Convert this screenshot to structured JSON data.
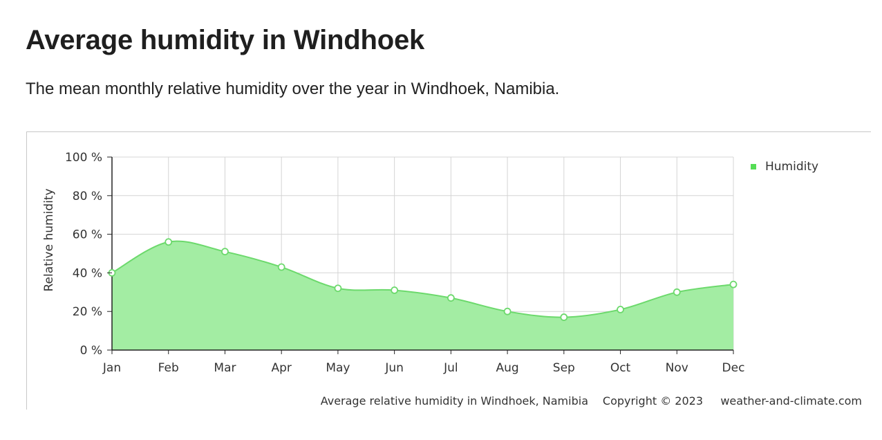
{
  "page": {
    "title": "Average humidity in Windhoek",
    "description": "The mean monthly relative humidity over the year in Windhoek, Namibia."
  },
  "chart_data": {
    "type": "area",
    "title": "Average relative humidity in Windhoek, Namibia",
    "copyright": "Copyright © 2023",
    "source": "weather-and-climate.com",
    "xlabel": "",
    "ylabel": "Relative humidity",
    "categories": [
      "Jan",
      "Feb",
      "Mar",
      "Apr",
      "May",
      "Jun",
      "Jul",
      "Aug",
      "Sep",
      "Oct",
      "Nov",
      "Dec"
    ],
    "series": [
      {
        "name": "Humidity",
        "values": [
          40,
          56,
          51,
          43,
          32,
          31,
          27,
          20,
          17,
          21,
          30,
          34
        ]
      }
    ],
    "ylim": [
      0,
      100
    ],
    "yticks": [
      0,
      20,
      40,
      60,
      80,
      100
    ],
    "ytick_labels": [
      "0 %",
      "20 %",
      "40 %",
      "60 %",
      "80 %",
      "100 %"
    ],
    "grid": true,
    "legend_position": "top-right",
    "colors": {
      "fill": "#a3eda3",
      "line": "#6cd96c",
      "legend": "#55dd55",
      "grid": "#d4d4d4",
      "point_fill": "#ffffff"
    }
  }
}
